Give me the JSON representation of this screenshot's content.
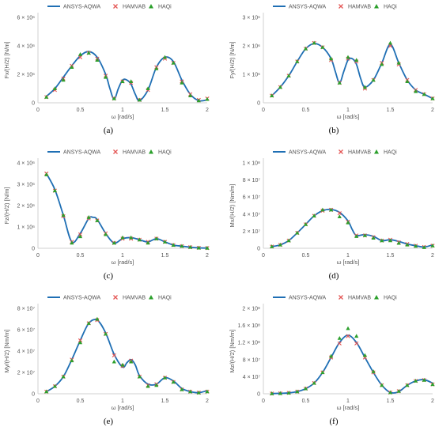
{
  "legend": {
    "items": [
      {
        "label": "ANSYS-AQWA",
        "color": "#1f6fb4",
        "marker": "line"
      },
      {
        "label": "HAMVAB",
        "color": "#e45756",
        "marker": "x"
      },
      {
        "label": "HAQi",
        "color": "#2ca02c",
        "marker": "triangle"
      }
    ]
  },
  "chart_data": [
    {
      "type": "line",
      "panel_label": "(a)",
      "xlabel": "ω [rad/s]",
      "ylabel": "Fx/(H/2) [N/m]",
      "x_ticks": [
        "0",
        "0.5",
        "1",
        "1.5",
        "2"
      ],
      "y_ticks": [
        "0",
        "2 × 10⁶",
        "4 × 10⁶",
        "6 × 10⁶"
      ],
      "xlim": [
        0,
        2
      ],
      "ylim": [
        0,
        6000000
      ],
      "series": [
        {
          "name": "ANSYS-AQWA",
          "x": [
            0.1,
            0.2,
            0.3,
            0.4,
            0.5,
            0.6,
            0.7,
            0.8,
            0.85,
            0.9,
            0.95,
            1.0,
            1.05,
            1.1,
            1.15,
            1.2,
            1.3,
            1.4,
            1.5,
            1.6,
            1.7,
            1.8,
            1.9,
            2.0
          ],
          "y": [
            450000,
            1000000,
            1800000,
            2600000,
            3300000,
            3600000,
            3200000,
            2000000,
            1000000,
            250000,
            1000000,
            1600000,
            1600000,
            1300000,
            600000,
            150000,
            900000,
            2500000,
            3200000,
            2900000,
            1600000,
            600000,
            150000,
            200000
          ]
        },
        {
          "name": "HAMVAB",
          "x": [
            0.1,
            0.2,
            0.3,
            0.4,
            0.5,
            0.6,
            0.7,
            0.8,
            0.9,
            1.0,
            1.1,
            1.2,
            1.3,
            1.4,
            1.5,
            1.6,
            1.7,
            1.8,
            1.9,
            2.0
          ],
          "y": [
            400000,
            900000,
            1700000,
            2600000,
            3200000,
            3500000,
            3100000,
            1900000,
            300000,
            1500000,
            1400000,
            200000,
            900000,
            2500000,
            3100000,
            2800000,
            1500000,
            600000,
            200000,
            300000
          ]
        },
        {
          "name": "HAQi",
          "x": [
            0.1,
            0.2,
            0.3,
            0.4,
            0.5,
            0.6,
            0.7,
            0.8,
            0.9,
            1.0,
            1.1,
            1.2,
            1.3,
            1.4,
            1.5,
            1.6,
            1.7,
            1.8,
            1.9,
            2.0
          ],
          "y": [
            400000,
            1000000,
            1600000,
            2500000,
            3400000,
            3500000,
            3000000,
            1800000,
            300000,
            1500000,
            1500000,
            200000,
            1000000,
            2400000,
            3200000,
            2800000,
            1400000,
            500000,
            150000,
            250000
          ]
        }
      ]
    },
    {
      "type": "line",
      "panel_label": "(b)",
      "xlabel": "ω [rad/s]",
      "ylabel": "Fy/(H/2) [N/m]",
      "x_ticks": [
        "0",
        "0.5",
        "1",
        "1.5",
        "2"
      ],
      "y_ticks": [
        "0",
        "1 × 10⁶",
        "2 × 10⁶",
        "3 × 10⁶"
      ],
      "xlim": [
        0,
        2
      ],
      "ylim": [
        0,
        3000000
      ],
      "series": [
        {
          "name": "ANSYS-AQWA",
          "x": [
            0.1,
            0.2,
            0.3,
            0.4,
            0.5,
            0.6,
            0.7,
            0.8,
            0.85,
            0.9,
            0.95,
            1.0,
            1.05,
            1.1,
            1.15,
            1.2,
            1.3,
            1.4,
            1.5,
            1.6,
            1.7,
            1.8,
            1.9,
            2.0
          ],
          "y": [
            250000,
            550000,
            950000,
            1450000,
            1900000,
            2080000,
            1950000,
            1550000,
            1100000,
            700000,
            1100000,
            1500000,
            1550000,
            1350000,
            850000,
            550000,
            800000,
            1400000,
            2050000,
            1400000,
            800000,
            450000,
            300000,
            150000
          ]
        },
        {
          "name": "HAMVAB",
          "x": [
            0.1,
            0.2,
            0.3,
            0.4,
            0.5,
            0.6,
            0.7,
            0.8,
            0.9,
            1.0,
            1.1,
            1.2,
            1.3,
            1.4,
            1.5,
            1.6,
            1.7,
            1.8,
            1.9,
            2.0
          ],
          "y": [
            250000,
            550000,
            950000,
            1450000,
            1900000,
            2100000,
            1950000,
            1500000,
            700000,
            1550000,
            1450000,
            500000,
            800000,
            1400000,
            2000000,
            1350000,
            800000,
            450000,
            300000,
            150000
          ]
        },
        {
          "name": "HAQi",
          "x": [
            0.1,
            0.2,
            0.3,
            0.4,
            0.5,
            0.6,
            0.7,
            0.8,
            0.9,
            1.0,
            1.1,
            1.2,
            1.3,
            1.4,
            1.5,
            1.6,
            1.7,
            1.8,
            1.9,
            2.0
          ],
          "y": [
            250000,
            550000,
            950000,
            1450000,
            1900000,
            2100000,
            1950000,
            1550000,
            700000,
            1600000,
            1500000,
            550000,
            800000,
            1350000,
            2100000,
            1400000,
            750000,
            400000,
            300000,
            150000
          ]
        }
      ]
    },
    {
      "type": "line",
      "panel_label": "(c)",
      "xlabel": "ω [rad/s]",
      "ylabel": "Fz/(H/2) [N/m]",
      "x_ticks": [
        "0",
        "0.5",
        "1",
        "1.5",
        "2"
      ],
      "y_ticks": [
        "0",
        "1 × 10⁶",
        "2 × 10⁶",
        "3 × 10⁶",
        "4 × 10⁶"
      ],
      "xlim": [
        0,
        2
      ],
      "ylim": [
        0,
        4000000
      ],
      "series": [
        {
          "name": "ANSYS-AQWA",
          "x": [
            0.1,
            0.2,
            0.3,
            0.4,
            0.5,
            0.6,
            0.65,
            0.7,
            0.8,
            0.9,
            1.0,
            1.1,
            1.2,
            1.3,
            1.4,
            1.5,
            1.6,
            1.7,
            1.8,
            1.9,
            2.0
          ],
          "y": [
            3500000,
            2750000,
            1550000,
            300000,
            700000,
            1400000,
            1450000,
            1350000,
            700000,
            250000,
            450000,
            500000,
            400000,
            300000,
            450000,
            300000,
            150000,
            100000,
            50000,
            20000,
            10000
          ]
        },
        {
          "name": "HAMVAB",
          "x": [
            0.1,
            0.2,
            0.3,
            0.4,
            0.5,
            0.6,
            0.7,
            0.8,
            0.9,
            1.0,
            1.1,
            1.2,
            1.3,
            1.4,
            1.5,
            1.6,
            1.7,
            1.8,
            1.9,
            2.0
          ],
          "y": [
            3500000,
            2700000,
            1500000,
            300000,
            650000,
            1400000,
            1300000,
            700000,
            250000,
            450000,
            450000,
            400000,
            300000,
            450000,
            300000,
            150000,
            100000,
            50000,
            20000,
            10000
          ]
        },
        {
          "name": "HAQi",
          "x": [
            0.1,
            0.2,
            0.3,
            0.4,
            0.5,
            0.6,
            0.7,
            0.8,
            0.9,
            1.0,
            1.1,
            1.2,
            1.3,
            1.4,
            1.5,
            1.6,
            1.7,
            1.8,
            1.9,
            2.0
          ],
          "y": [
            3450000,
            2700000,
            1550000,
            250000,
            550000,
            1450000,
            1300000,
            650000,
            250000,
            500000,
            500000,
            400000,
            250000,
            450000,
            300000,
            150000,
            100000,
            50000,
            20000,
            10000
          ]
        }
      ]
    },
    {
      "type": "line",
      "panel_label": "(d)",
      "xlabel": "ω [rad/s]",
      "ylabel": "Mx/(H/2) [Nm/m]",
      "x_ticks": [
        "0",
        "0.5",
        "1",
        "1.5",
        "2"
      ],
      "y_ticks": [
        "0",
        "2 × 10⁷",
        "4 × 10⁷",
        "6 × 10⁷",
        "8 × 10⁷",
        "1 × 10⁸"
      ],
      "xlim": [
        0,
        2
      ],
      "ylim": [
        0,
        100000000
      ],
      "series": [
        {
          "name": "ANSYS-AQWA",
          "x": [
            0.1,
            0.2,
            0.3,
            0.4,
            0.5,
            0.6,
            0.7,
            0.8,
            0.9,
            1.0,
            1.05,
            1.1,
            1.2,
            1.3,
            1.4,
            1.5,
            1.6,
            1.7,
            1.8,
            1.9,
            2.0
          ],
          "y": [
            2000000,
            4000000,
            9000000,
            18000000,
            28000000,
            38000000,
            44000000,
            45500000,
            42000000,
            32000000,
            22000000,
            15000000,
            16000000,
            14000000,
            9000000,
            10000000,
            8000000,
            5000000,
            3000000,
            1500000,
            4000000
          ]
        },
        {
          "name": "HAMVAB",
          "x": [
            0.1,
            0.2,
            0.3,
            0.4,
            0.5,
            0.6,
            0.7,
            0.8,
            0.9,
            1.0,
            1.1,
            1.2,
            1.3,
            1.4,
            1.5,
            1.6,
            1.7,
            1.8,
            1.9,
            2.0
          ],
          "y": [
            2000000,
            4000000,
            9000000,
            18000000,
            28000000,
            38000000,
            44000000,
            45000000,
            41000000,
            31000000,
            15000000,
            15000000,
            13000000,
            9000000,
            10000000,
            7000000,
            5000000,
            3000000,
            1500000,
            3000000
          ]
        },
        {
          "name": "HAQi",
          "x": [
            0.1,
            0.2,
            0.3,
            0.4,
            0.5,
            0.6,
            0.7,
            0.8,
            0.9,
            1.0,
            1.1,
            1.2,
            1.3,
            1.4,
            1.5,
            1.6,
            1.7,
            1.8,
            1.9,
            2.0
          ],
          "y": [
            2000000,
            4000000,
            9000000,
            18000000,
            28000000,
            38000000,
            45000000,
            45000000,
            37000000,
            30000000,
            14000000,
            15000000,
            12000000,
            9000000,
            9000000,
            6000000,
            4000000,
            2500000,
            1000000,
            3000000
          ]
        }
      ]
    },
    {
      "type": "line",
      "panel_label": "(e)",
      "xlabel": "ω [rad/s]",
      "ylabel": "My/(H/2) [Nm/m]",
      "x_ticks": [
        "0",
        "0.5",
        "1",
        "1.5",
        "2"
      ],
      "y_ticks": [
        "0",
        "2 × 10⁷",
        "4 × 10⁷",
        "6 × 10⁷",
        "8 × 10⁷"
      ],
      "xlim": [
        0,
        2
      ],
      "ylim": [
        0,
        80000000
      ],
      "series": [
        {
          "name": "ANSYS-AQWA",
          "x": [
            0.1,
            0.2,
            0.3,
            0.4,
            0.5,
            0.6,
            0.7,
            0.8,
            0.9,
            1.0,
            1.05,
            1.1,
            1.15,
            1.2,
            1.3,
            1.4,
            1.5,
            1.6,
            1.7,
            1.8,
            1.9,
            2.0
          ],
          "y": [
            2000000,
            7000000,
            16000000,
            32000000,
            50000000,
            66000000,
            69000000,
            57000000,
            37000000,
            25000000,
            29000000,
            32000000,
            27000000,
            17000000,
            9000000,
            9000000,
            15000000,
            12000000,
            5000000,
            2000000,
            1000000,
            3000000
          ]
        },
        {
          "name": "HAMVAB",
          "x": [
            0.1,
            0.2,
            0.3,
            0.4,
            0.5,
            0.6,
            0.7,
            0.8,
            0.9,
            1.0,
            1.1,
            1.2,
            1.3,
            1.4,
            1.5,
            1.6,
            1.7,
            1.8,
            1.9,
            2.0
          ],
          "y": [
            2000000,
            7000000,
            16000000,
            32000000,
            50000000,
            66000000,
            69000000,
            56000000,
            36000000,
            26000000,
            31000000,
            16000000,
            8000000,
            9000000,
            15000000,
            11000000,
            4000000,
            2000000,
            1000000,
            2000000
          ]
        },
        {
          "name": "HAQi",
          "x": [
            0.1,
            0.2,
            0.3,
            0.4,
            0.5,
            0.6,
            0.7,
            0.8,
            0.9,
            1.0,
            1.1,
            1.2,
            1.3,
            1.4,
            1.5,
            1.6,
            1.7,
            1.8,
            1.9,
            2.0
          ],
          "y": [
            2000000,
            7000000,
            16000000,
            31000000,
            48000000,
            66000000,
            70000000,
            56000000,
            30000000,
            27000000,
            30000000,
            16000000,
            7000000,
            8000000,
            15000000,
            11000000,
            4000000,
            2000000,
            1000000,
            2000000
          ]
        }
      ]
    },
    {
      "type": "line",
      "panel_label": "(f)",
      "xlabel": "ω [rad/s]",
      "ylabel": "Mz/(H/2) [Nm/m]",
      "x_ticks": [
        "0",
        "0.5",
        "1",
        "1.5",
        "2"
      ],
      "y_ticks": [
        "0",
        "4 × 10⁷",
        "8 × 10⁷",
        "1.2 × 10⁸",
        "1.6 × 10⁸",
        "2 × 10⁸"
      ],
      "xlim": [
        0,
        2
      ],
      "ylim": [
        0,
        200000000
      ],
      "series": [
        {
          "name": "ANSYS-AQWA",
          "x": [
            0.1,
            0.2,
            0.3,
            0.4,
            0.5,
            0.6,
            0.7,
            0.8,
            0.9,
            1.0,
            1.1,
            1.2,
            1.3,
            1.4,
            1.5,
            1.6,
            1.7,
            1.8,
            1.9,
            2.0
          ],
          "y": [
            500000,
            1000000,
            2000000,
            5000000,
            12000000,
            25000000,
            50000000,
            85000000,
            120000000,
            137000000,
            120000000,
            85000000,
            50000000,
            20000000,
            3000000,
            5000000,
            20000000,
            30000000,
            33000000,
            25000000
          ]
        },
        {
          "name": "HAMVAB",
          "x": [
            0.1,
            0.2,
            0.3,
            0.4,
            0.5,
            0.6,
            0.7,
            0.8,
            0.9,
            1.0,
            1.1,
            1.2,
            1.3,
            1.4,
            1.5,
            1.6,
            1.7,
            1.8,
            1.9,
            2.0
          ],
          "y": [
            500000,
            1000000,
            2000000,
            5000000,
            12000000,
            25000000,
            50000000,
            85000000,
            118000000,
            135000000,
            118000000,
            85000000,
            50000000,
            20000000,
            3000000,
            6000000,
            20000000,
            30000000,
            32000000,
            22000000
          ]
        },
        {
          "name": "HAQi",
          "x": [
            0.1,
            0.2,
            0.3,
            0.4,
            0.5,
            0.6,
            0.7,
            0.8,
            0.9,
            1.0,
            1.1,
            1.2,
            1.3,
            1.4,
            1.5,
            1.6,
            1.7,
            1.8,
            1.9,
            2.0
          ],
          "y": [
            500000,
            1000000,
            2000000,
            5000000,
            12000000,
            25000000,
            50000000,
            88000000,
            130000000,
            153000000,
            135000000,
            90000000,
            52000000,
            20000000,
            3000000,
            6000000,
            20000000,
            30000000,
            32000000,
            22000000
          ]
        }
      ]
    }
  ]
}
